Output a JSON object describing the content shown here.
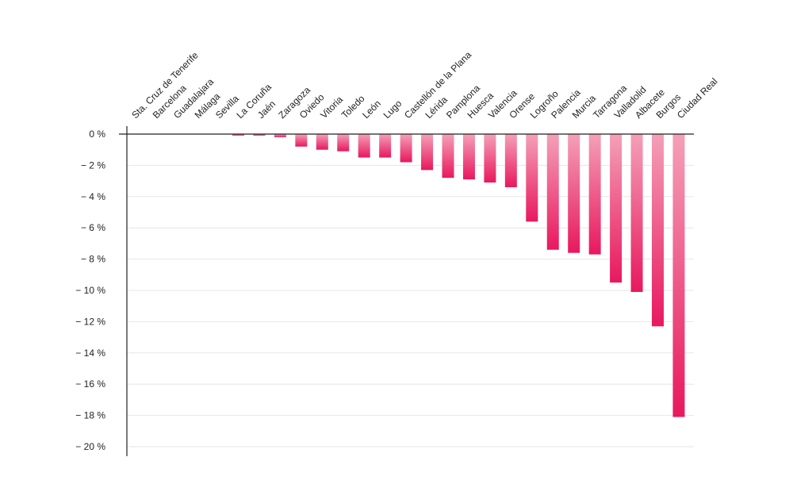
{
  "chart_data": {
    "type": "bar",
    "title": "",
    "xlabel": "",
    "ylabel": "",
    "ylim": [
      -20,
      0
    ],
    "yticks": [
      0,
      -2,
      -4,
      -6,
      -8,
      -10,
      -12,
      -14,
      -16,
      -18,
      -20
    ],
    "ytick_labels": [
      "0 %",
      "− 2 %",
      "− 4 %",
      "− 6 %",
      "− 8 %",
      "− 10 %",
      "− 12 %",
      "− 14 %",
      "− 16 %",
      "− 18 %",
      "− 20 %"
    ],
    "grid": true,
    "category_label_position": "top",
    "categories": [
      "Sta. Cruz de Tenerife",
      "Barcelona",
      "Guadalajara",
      "Málaga",
      "Sevilla",
      "La Coruña",
      "Jaén",
      "Zaragoza",
      "Oviedo",
      "Vitoria",
      "Toledo",
      "León",
      "Lugo",
      "Castellón de la Plana",
      "Lérida",
      "Pamplona",
      "Huesca",
      "Valencia",
      "Orense",
      "Logroño",
      "Palencia",
      "Murcia",
      "Tarragona",
      "Valladolid",
      "Albacete",
      "Burgos",
      "Ciudad Real"
    ],
    "values": [
      0,
      0,
      0,
      0,
      0,
      -0.1,
      -0.1,
      -0.2,
      -0.8,
      -1.0,
      -1.1,
      -1.5,
      -1.5,
      -1.8,
      -2.3,
      -2.8,
      -2.9,
      -3.1,
      -3.4,
      -5.6,
      -7.4,
      -7.6,
      -7.7,
      -9.5,
      -10.1,
      -12.3,
      -18.1
    ],
    "colors": {
      "bar_top": "#f4a0b8",
      "bar_bottom": "#e8185e",
      "grid": "#e6e6e6",
      "axis": "#222222"
    }
  }
}
